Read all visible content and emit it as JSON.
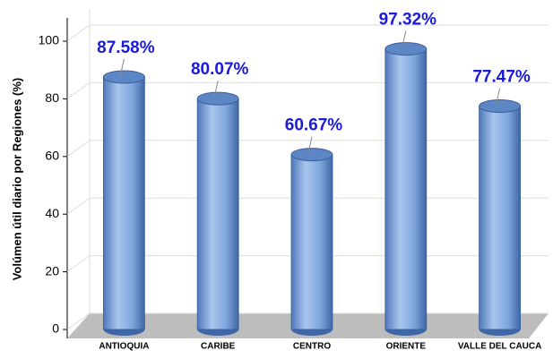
{
  "chart_data": {
    "type": "bar",
    "y_label": "Volúmen útil diario por Regiones (%)",
    "categories": [
      "ANTIOQUIA",
      "CARIBE",
      "CENTRO",
      "ORIENTE",
      "VALLE DEL CAUCA"
    ],
    "values": [
      87.58,
      80.07,
      60.67,
      97.32,
      77.47
    ],
    "value_labels": [
      "87.58%",
      "80.07%",
      "60.67%",
      "97.32%",
      "77.47%"
    ],
    "color": "#7fa6dc",
    "ylim": [
      0,
      100
    ],
    "yticks": [
      0,
      20,
      40,
      60,
      80,
      100
    ],
    "grid": true
  }
}
